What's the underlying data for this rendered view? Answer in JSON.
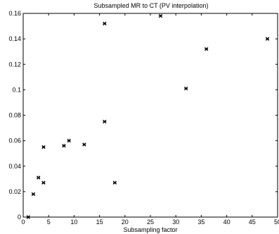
{
  "chart_data": {
    "type": "scatter",
    "title": "Subsampled MR to CT (PV interpolation)",
    "xlabel": "Subsampling factor",
    "ylabel": "",
    "xlim": [
      0,
      50
    ],
    "ylim": [
      0,
      0.16
    ],
    "xticks": [
      "0",
      "5",
      "10",
      "15",
      "20",
      "25",
      "30",
      "35",
      "40",
      "45",
      "50"
    ],
    "yticks": [
      "0",
      "0.02",
      "0.04",
      "0.06",
      "0.08",
      "0.1",
      "0.12",
      "0.14",
      "0.16"
    ],
    "marker": "x",
    "grid": false,
    "series": [
      {
        "points": [
          {
            "x": 1,
            "y": 0.0
          },
          {
            "x": 2,
            "y": 0.018
          },
          {
            "x": 3,
            "y": 0.031
          },
          {
            "x": 4,
            "y": 0.027
          },
          {
            "x": 4,
            "y": 0.055
          },
          {
            "x": 8,
            "y": 0.056
          },
          {
            "x": 9,
            "y": 0.06
          },
          {
            "x": 12,
            "y": 0.057
          },
          {
            "x": 16,
            "y": 0.152
          },
          {
            "x": 16,
            "y": 0.075
          },
          {
            "x": 18,
            "y": 0.027
          },
          {
            "x": 27,
            "y": 0.158
          },
          {
            "x": 32,
            "y": 0.101
          },
          {
            "x": 36,
            "y": 0.132
          },
          {
            "x": 48,
            "y": 0.14
          }
        ]
      }
    ]
  }
}
